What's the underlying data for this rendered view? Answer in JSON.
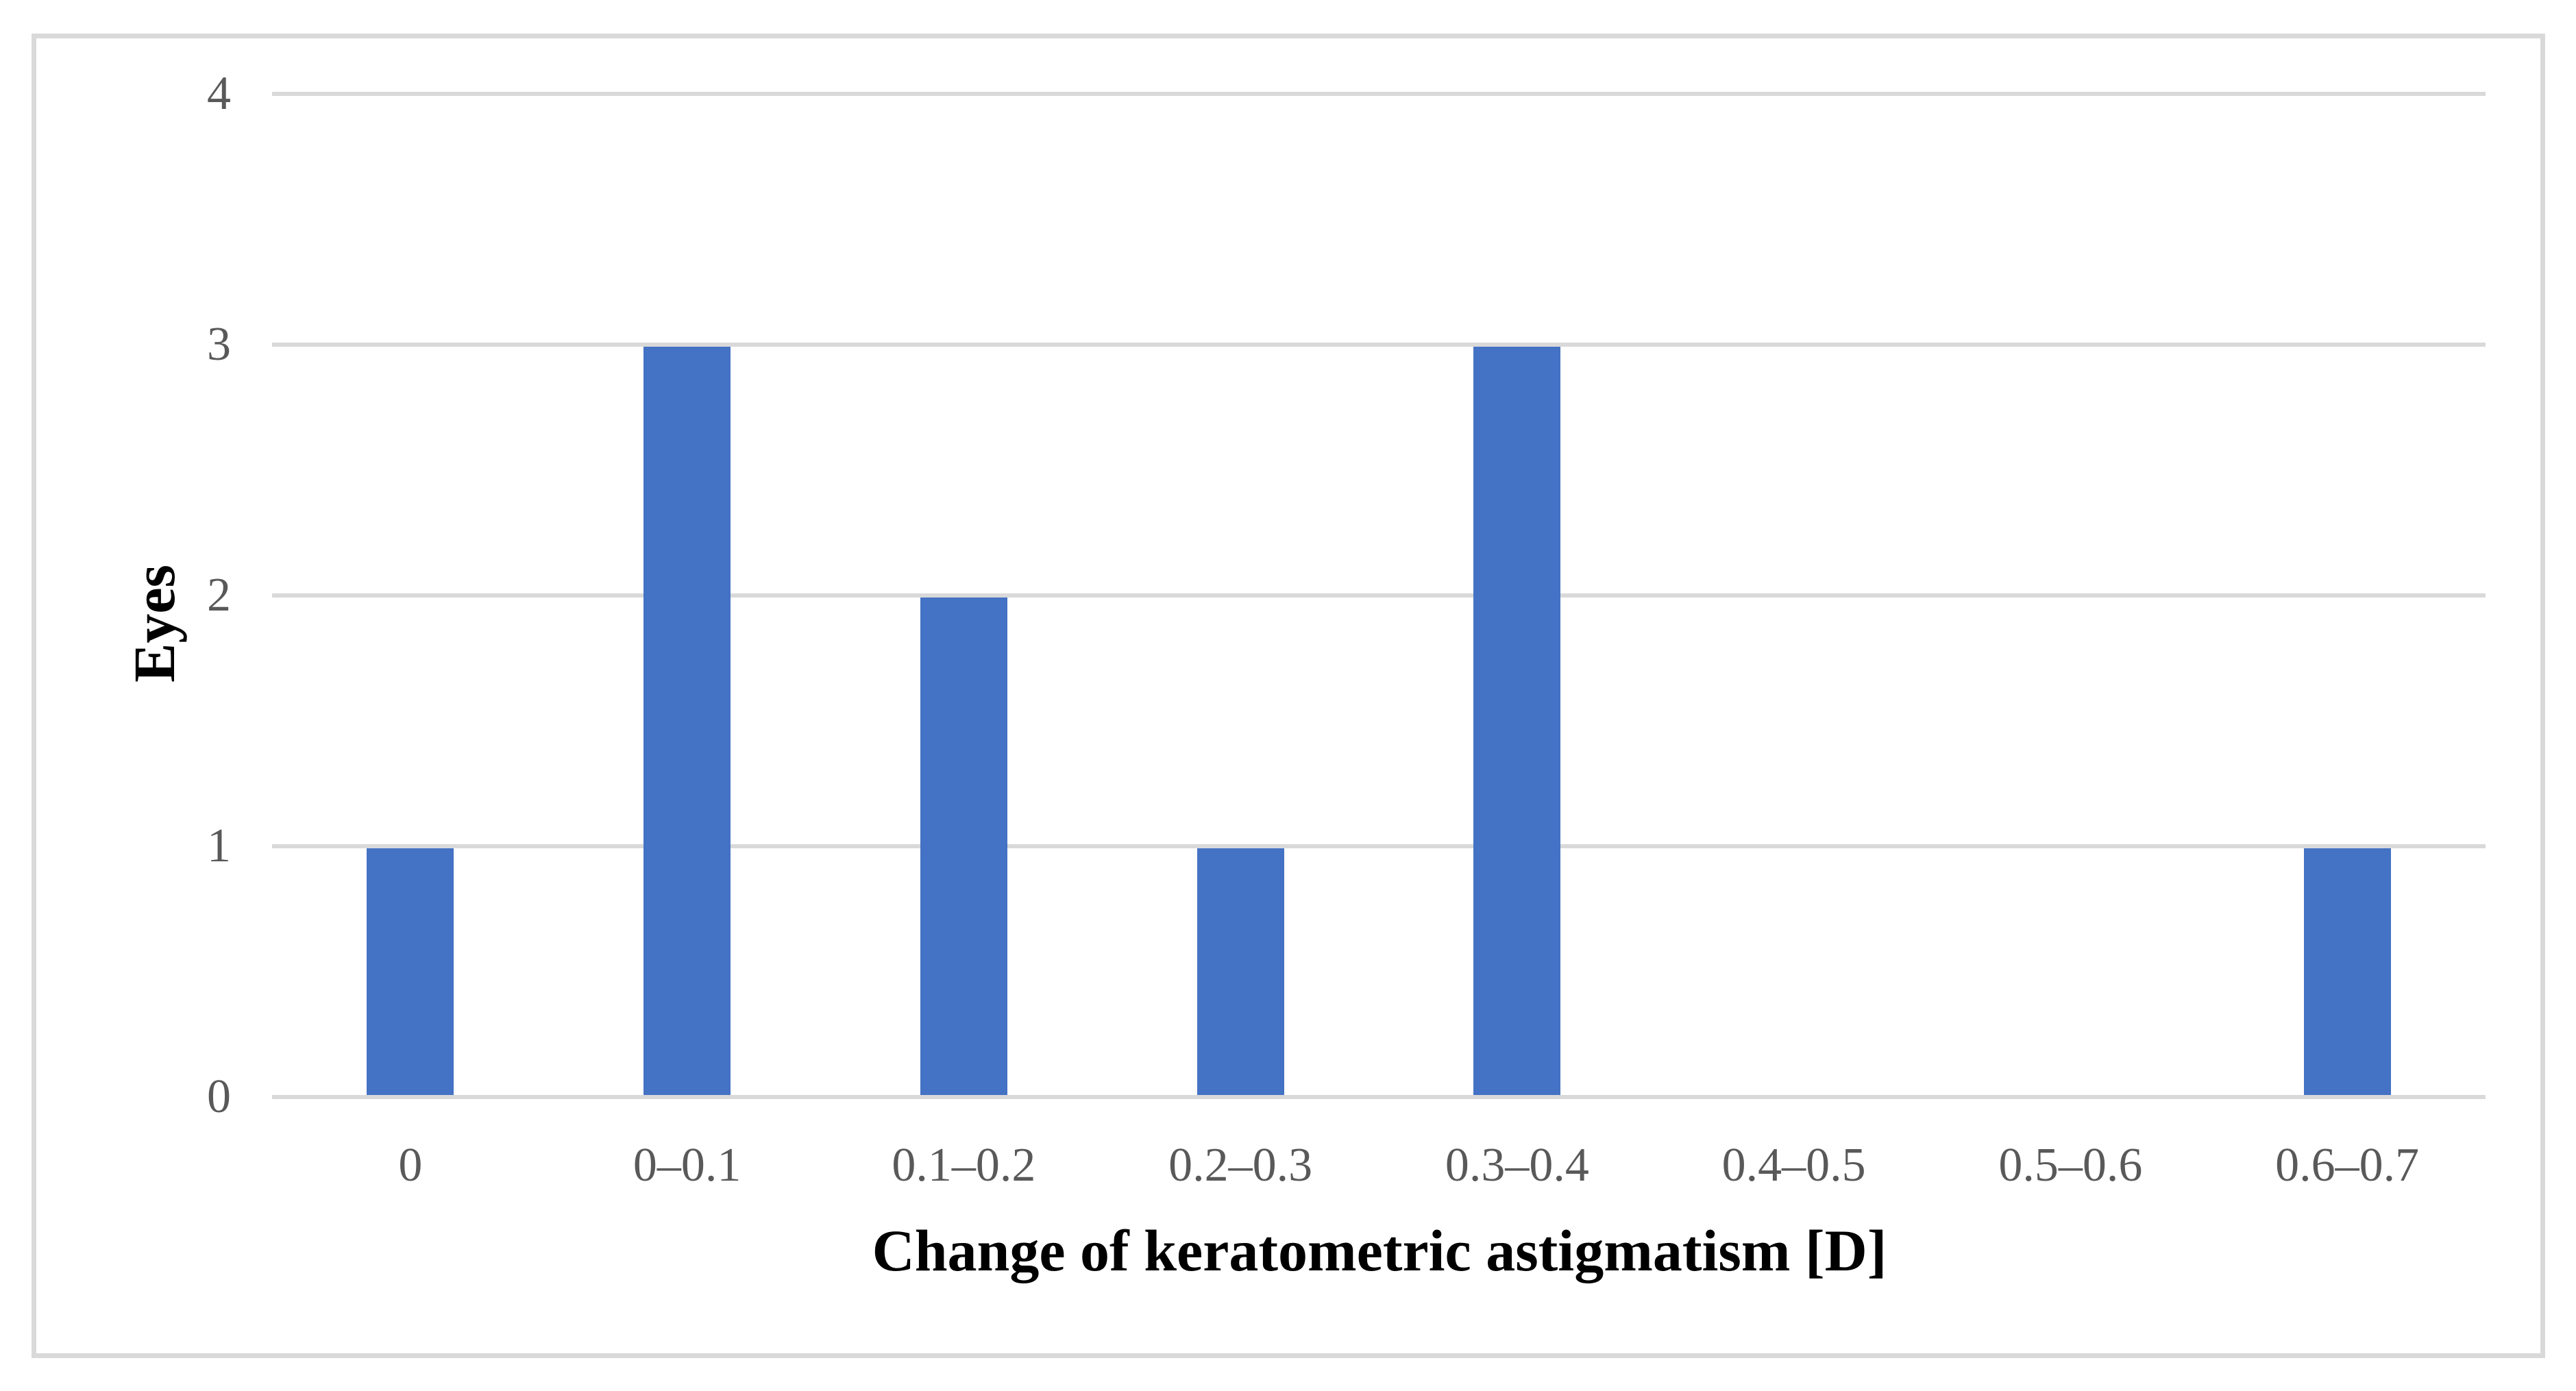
{
  "chart_data": {
    "type": "bar",
    "title": "",
    "categories": [
      "0",
      "0–0.1",
      "0.1–0.2",
      "0.2–0.3",
      "0.3–0.4",
      "0.4–0.5",
      "0.5–0.6",
      "0.6–0.7"
    ],
    "values": [
      1,
      3,
      2,
      1,
      3,
      0,
      0,
      1
    ],
    "xlabel": "Change of keratometric astigmatism [D]",
    "ylabel": "Eyes",
    "ylim": [
      0,
      4
    ],
    "yticks": [
      "0",
      "1",
      "2",
      "3",
      "4"
    ],
    "grid": true,
    "legend": false,
    "colors": {
      "bar": "#4472c4",
      "gridline": "#d9d9d9",
      "axis_line": "#d9d9d9",
      "tick_label": "#595959",
      "axis_title": "#000000",
      "frame_border": "#d9d9d9",
      "background": "#ffffff"
    }
  }
}
